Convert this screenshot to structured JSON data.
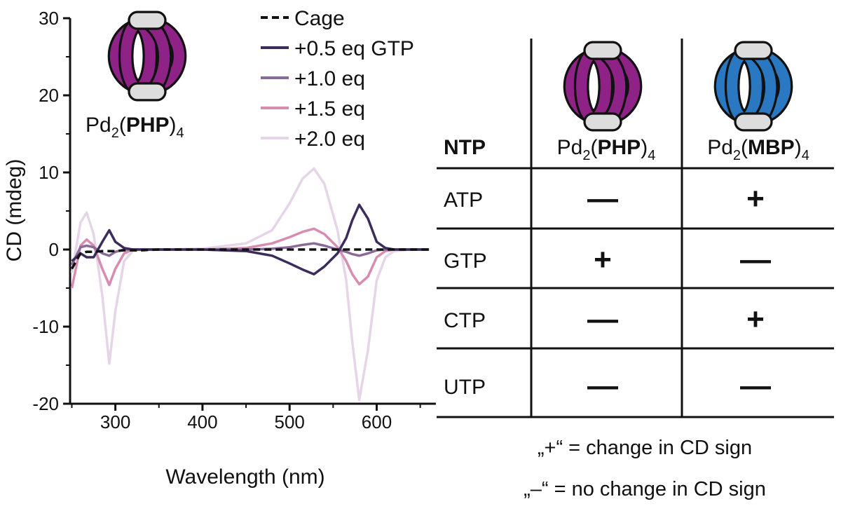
{
  "chart_data": {
    "type": "line",
    "x_label": "Wavelength (nm)",
    "y_label": "CD (mdeg)",
    "annotation": [
      "Pd",
      "2",
      "(",
      "PHP",
      ")",
      "4"
    ],
    "x": [
      250,
      260,
      267,
      275,
      285,
      293,
      300,
      310,
      320,
      330,
      350,
      400,
      450,
      480,
      500,
      515,
      528,
      540,
      555,
      565,
      572,
      580,
      590,
      600,
      610,
      620,
      640,
      660
    ],
    "series": [
      {
        "name": "Cage",
        "color": "#111111",
        "style": "dashed",
        "values": [
          -2.5,
          -0.5,
          -0.3,
          -0.3,
          -0.2,
          -0.2,
          -0.2,
          -0.1,
          -0.1,
          -0.1,
          0,
          0,
          0,
          0,
          0,
          0,
          0,
          0,
          0,
          0,
          0,
          0,
          0,
          0,
          0,
          0,
          0,
          0
        ]
      },
      {
        "name": "+0.5 eq GTP",
        "color": "#3b2c5c",
        "style": "solid",
        "values": [
          -1.5,
          -0.5,
          -1.0,
          -1.0,
          1.0,
          2.5,
          1.0,
          0.2,
          0,
          0,
          0,
          0,
          -0.2,
          -0.8,
          -1.8,
          -2.6,
          -3.2,
          -2.2,
          -0.5,
          1.5,
          3.8,
          5.8,
          4.0,
          1.0,
          0.2,
          0,
          0,
          0
        ]
      },
      {
        "name": "+1.0 eq",
        "color": "#8a6a98",
        "style": "solid",
        "values": [
          -2,
          0.3,
          0.5,
          0.3,
          -0.5,
          -0.8,
          -0.3,
          0,
          0,
          0,
          0,
          0,
          0,
          0.1,
          0.3,
          0.6,
          0.8,
          0.5,
          0,
          -0.3,
          -0.6,
          -0.8,
          -0.5,
          -0.1,
          0,
          0,
          0,
          0
        ]
      },
      {
        "name": "+1.5 eq",
        "color": "#d88cb0",
        "style": "solid",
        "values": [
          -5,
          0.5,
          1.3,
          0.5,
          -2.5,
          -4.6,
          -2.5,
          -0.5,
          0,
          0,
          0,
          0,
          0.2,
          0.8,
          1.6,
          2.3,
          2.7,
          2.0,
          0.3,
          -1.5,
          -3.2,
          -4.5,
          -3.5,
          -1.0,
          -0.2,
          0,
          0,
          0
        ]
      },
      {
        "name": "+2.0 eq",
        "color": "#e6d5e8",
        "style": "solid",
        "values": [
          -3,
          3.5,
          4.8,
          2.0,
          -6,
          -14.8,
          -8,
          -1.5,
          -0.2,
          0,
          0,
          0.1,
          0.8,
          2.5,
          6.0,
          9.2,
          10.5,
          8.5,
          2.5,
          -4,
          -12,
          -19.5,
          -13,
          -4,
          -1,
          -0.2,
          0,
          0
        ]
      }
    ],
    "xlim": [
      248,
      668
    ],
    "ylim": [
      -20,
      30
    ],
    "xticks": [
      300,
      400,
      500,
      600
    ],
    "yticks": [
      -20,
      -10,
      0,
      10,
      20,
      30
    ],
    "xminor_ticks": [
      250,
      350,
      450,
      550,
      650
    ],
    "yminor_ticks": [
      -15,
      -5,
      5,
      15,
      25
    ]
  },
  "table": {
    "header": {
      "ntp": "NTP",
      "php": [
        "Pd",
        "2",
        "(",
        "PHP",
        ")",
        "4"
      ],
      "mbp": [
        "Pd",
        "2",
        "(",
        "MBP",
        ")",
        "4"
      ]
    },
    "rows": [
      [
        "ATP",
        "—",
        "+"
      ],
      [
        "GTP",
        "+",
        "—"
      ],
      [
        "CTP",
        "—",
        "+"
      ],
      [
        "UTP",
        "—",
        "—"
      ]
    ]
  },
  "notes": [
    "„+“ = change in CD sign",
    "„–“ = no change in CD sign"
  ]
}
